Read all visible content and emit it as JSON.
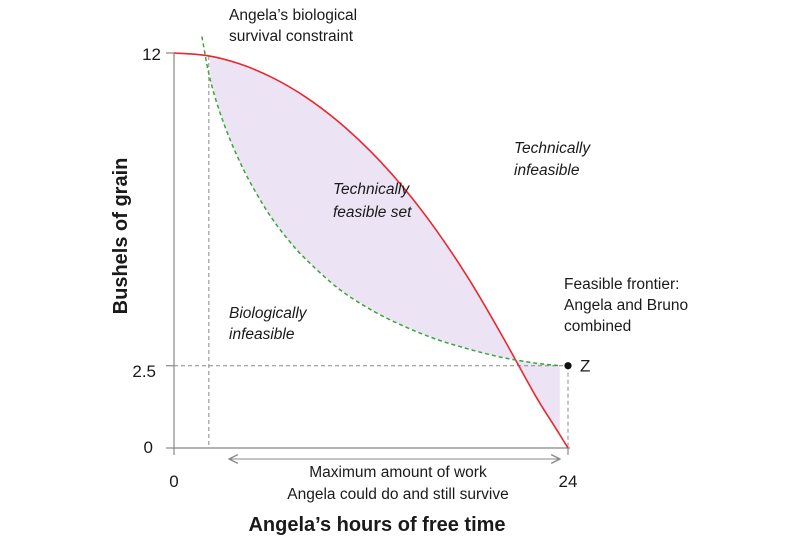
{
  "chart_data": {
    "type": "area",
    "xlabel": "Angela’s hours of free time",
    "ylabel": "Bushels of grain",
    "xlim": [
      0,
      24
    ],
    "ylim": [
      0,
      12
    ],
    "x_ticks": [
      "0",
      "24"
    ],
    "y_ticks": [
      "0",
      "2.5",
      "12"
    ],
    "series": [
      {
        "name": "Feasible frontier: Angela and Bruno combined",
        "style": "solid",
        "color": "#e8282e",
        "x": [
          0,
          2,
          4,
          6,
          8,
          10,
          12,
          14,
          16,
          18,
          20,
          22,
          23,
          24
        ],
        "y": [
          12,
          11.92,
          11.67,
          11.25,
          10.67,
          9.92,
          9.0,
          7.9,
          6.6,
          5.1,
          3.4,
          1.6,
          0.8,
          0
        ]
      },
      {
        "name": "Angela’s biological survival constraint",
        "style": "dashed",
        "color": "#3aa63a",
        "x": [
          1.7,
          2.2,
          3,
          4,
          5,
          6,
          7,
          8,
          10,
          12,
          14,
          16,
          18,
          20,
          22,
          23.5
        ],
        "y": [
          12.5,
          11.2,
          9.9,
          8.7,
          7.75,
          6.95,
          6.3,
          5.75,
          4.85,
          4.2,
          3.7,
          3.3,
          3.0,
          2.75,
          2.58,
          2.5
        ]
      }
    ],
    "points": [
      {
        "label": "Z",
        "x": 24,
        "y": 2.5
      }
    ],
    "reference_lines": [
      {
        "orientation": "horizontal",
        "y": 2.5
      },
      {
        "orientation": "vertical",
        "x": 2
      },
      {
        "orientation": "vertical",
        "x": 24
      }
    ],
    "shaded_region": {
      "between": [
        "Angela’s biological survival constraint",
        "Feasible frontier: Angela and Bruno combined"
      ],
      "color": "#ece4f4"
    },
    "annotations": {
      "survival_constraint_1": "Angela’s biological",
      "survival_constraint_2": "survival constraint",
      "tech_infeasible_1": "Technically",
      "tech_infeasible_2": "infeasible",
      "tech_feasible_1": "Technically",
      "tech_feasible_2": "feasible set",
      "bio_infeasible_1": "Biologically",
      "bio_infeasible_2": "infeasible",
      "frontier_1": "Feasible frontier:",
      "frontier_2": "Angela and Bruno",
      "frontier_3": "combined",
      "max_work_1": "Maximum amount of work",
      "max_work_2": "Angela could do and still survive",
      "point_z": "Z"
    }
  }
}
